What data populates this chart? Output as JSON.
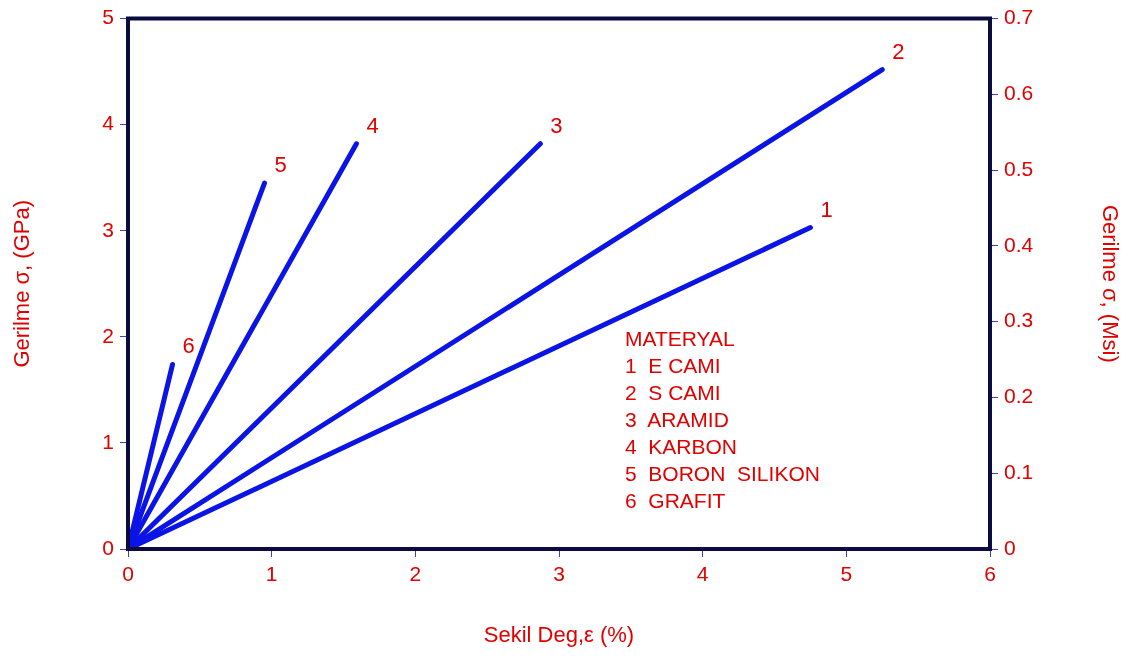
{
  "chart_data": {
    "type": "line",
    "xlabel": "Sekil Deg,ε (%)",
    "ylabel": "Gerilme σ, (GPa)",
    "y2label": "Gerilme σ, (Msi)",
    "xlim": [
      0,
      6
    ],
    "xticks": [
      0,
      1,
      2,
      3,
      4,
      5,
      6
    ],
    "ylim": [
      0,
      5
    ],
    "yticks": [
      0,
      1,
      2,
      3,
      4,
      5
    ],
    "y2lim": [
      0,
      0.7
    ],
    "y2ticks": [
      0,
      0.1,
      0.2,
      0.3,
      0.4,
      0.5,
      0.6,
      0.7
    ],
    "marker": "none",
    "line_style": "solid",
    "legend": false,
    "series": [
      {
        "name": "1",
        "color": "#0a14e6",
        "x": [
          0,
          4.75
        ],
        "values": [
          0,
          3.03
        ]
      },
      {
        "name": "2",
        "color": "#0a14e6",
        "x": [
          0,
          5.25
        ],
        "values": [
          0,
          4.52
        ]
      },
      {
        "name": "3",
        "color": "#0a14e6",
        "x": [
          0,
          2.87
        ],
        "values": [
          0,
          3.82
        ]
      },
      {
        "name": "4",
        "color": "#0a14e6",
        "x": [
          0,
          1.59
        ],
        "values": [
          0,
          3.82
        ]
      },
      {
        "name": "5",
        "color": "#0a14e6",
        "x": [
          0,
          0.95
        ],
        "values": [
          0,
          3.45
        ]
      },
      {
        "name": "6",
        "color": "#0a14e6",
        "x": [
          0,
          0.31
        ],
        "values": [
          0,
          1.74
        ]
      }
    ],
    "annotations": [
      "MATERYAL",
      "1  E CAMI",
      "2  S CAMI",
      "3  ARAMID",
      "4  KARBON",
      "5  BORON  SILIKON",
      "6  GRAFIT"
    ]
  }
}
